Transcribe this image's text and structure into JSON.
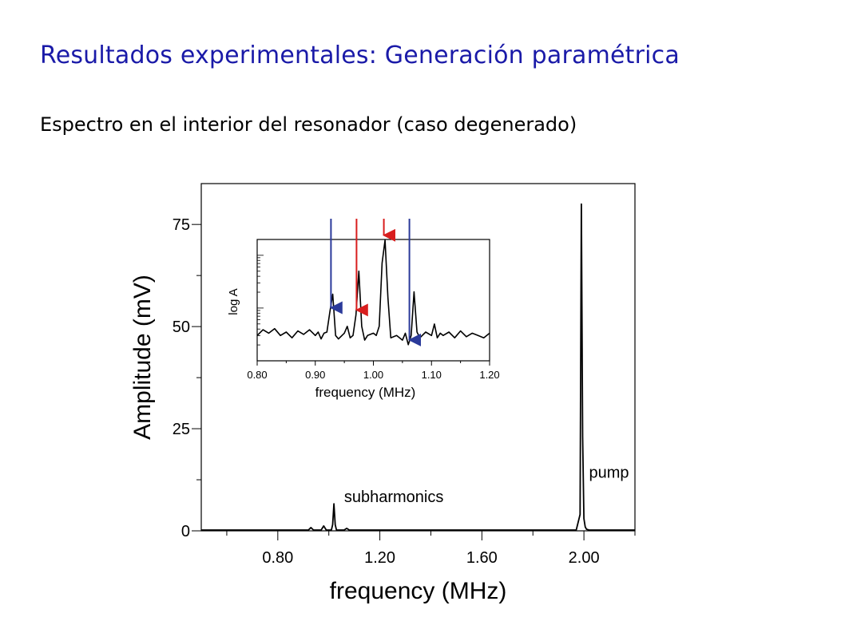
{
  "slide": {
    "title": "Resultados experimentales: Generación paramétrica",
    "subtitle": "Espectro en el interior del resonador (caso degenerado)"
  },
  "chart_data": [
    {
      "type": "line",
      "xlabel": "frequency (MHz)",
      "ylabel": "Amplitude (mV)",
      "xlim": [
        0.5,
        2.2
      ],
      "ylim": [
        0,
        85
      ],
      "xticks": [
        0.8,
        1.2,
        1.6,
        2.0
      ],
      "xtick_labels": [
        "0.80",
        "1.20",
        "1.60",
        "2.00"
      ],
      "yticks": [
        0,
        25,
        50,
        75
      ],
      "ytick_labels": [
        "0",
        "25",
        "50",
        "75"
      ],
      "grid": false,
      "line_color": "#000000",
      "series": [
        {
          "x": [
            0.5,
            0.92,
            0.93,
            0.94,
            0.97,
            0.98,
            0.99,
            1.01,
            1.015,
            1.02,
            1.025,
            1.03,
            1.06,
            1.07,
            1.08,
            1.97,
            1.985,
            1.99,
            1.995,
            2.0,
            2.005,
            2.01,
            2.02,
            2.2
          ],
          "y": [
            0.2,
            0.2,
            0.8,
            0.2,
            0.2,
            1.2,
            0.2,
            0.2,
            1.5,
            6.6,
            1.5,
            0.2,
            0.2,
            0.6,
            0.2,
            0.2,
            4,
            80,
            23,
            3,
            1,
            0.4,
            0.2,
            0.2
          ]
        }
      ],
      "annotations": [
        {
          "text": "pump",
          "x": 2.02,
          "y": 13
        },
        {
          "text": "subharmonics",
          "x": 1.06,
          "y": 7
        }
      ]
    },
    {
      "type": "line",
      "inset": true,
      "xlabel": "frequency (MHz)",
      "ylabel": "log A",
      "xlim": [
        0.8,
        1.2
      ],
      "ylim": [
        0,
        1
      ],
      "xticks": [
        0.8,
        0.9,
        1.0,
        1.1,
        1.2
      ],
      "xtick_labels": [
        "0.80",
        "0.90",
        "1.00",
        "1.10",
        "1.20"
      ],
      "log_y": true,
      "grid": false,
      "series": [
        {
          "x": [
            0.8,
            0.81,
            0.82,
            0.83,
            0.84,
            0.85,
            0.86,
            0.87,
            0.88,
            0.89,
            0.9,
            0.905,
            0.91,
            0.915,
            0.92,
            0.925,
            0.93,
            0.935,
            0.94,
            0.95,
            0.955,
            0.96,
            0.965,
            0.97,
            0.975,
            0.98,
            0.985,
            0.99,
            1.0,
            1.005,
            1.01,
            1.015,
            1.02,
            1.025,
            1.03,
            1.04,
            1.05,
            1.055,
            1.06,
            1.065,
            1.07,
            1.075,
            1.08,
            1.09,
            1.1,
            1.105,
            1.11,
            1.115,
            1.12,
            1.13,
            1.14,
            1.15,
            1.16,
            1.17,
            1.18,
            1.19,
            1.2
          ],
          "y": [
            0.22,
            0.27,
            0.24,
            0.28,
            0.22,
            0.25,
            0.2,
            0.26,
            0.23,
            0.27,
            0.22,
            0.25,
            0.19,
            0.24,
            0.25,
            0.42,
            0.58,
            0.22,
            0.19,
            0.24,
            0.3,
            0.2,
            0.22,
            0.4,
            0.78,
            0.3,
            0.18,
            0.22,
            0.24,
            0.22,
            0.3,
            0.85,
            1.05,
            0.55,
            0.2,
            0.22,
            0.18,
            0.24,
            0.14,
            0.22,
            0.6,
            0.25,
            0.2,
            0.25,
            0.22,
            0.32,
            0.2,
            0.24,
            0.22,
            0.25,
            0.2,
            0.26,
            0.21,
            0.24,
            0.22,
            0.2,
            0.24
          ]
        }
      ],
      "arrows": [
        {
          "x": 0.927,
          "color": "#2b3a9a"
        },
        {
          "x": 0.971,
          "color": "#d81e1e"
        },
        {
          "x": 1.018,
          "color": "#d81e1e"
        },
        {
          "x": 1.062,
          "color": "#2b3a9a"
        }
      ]
    }
  ]
}
